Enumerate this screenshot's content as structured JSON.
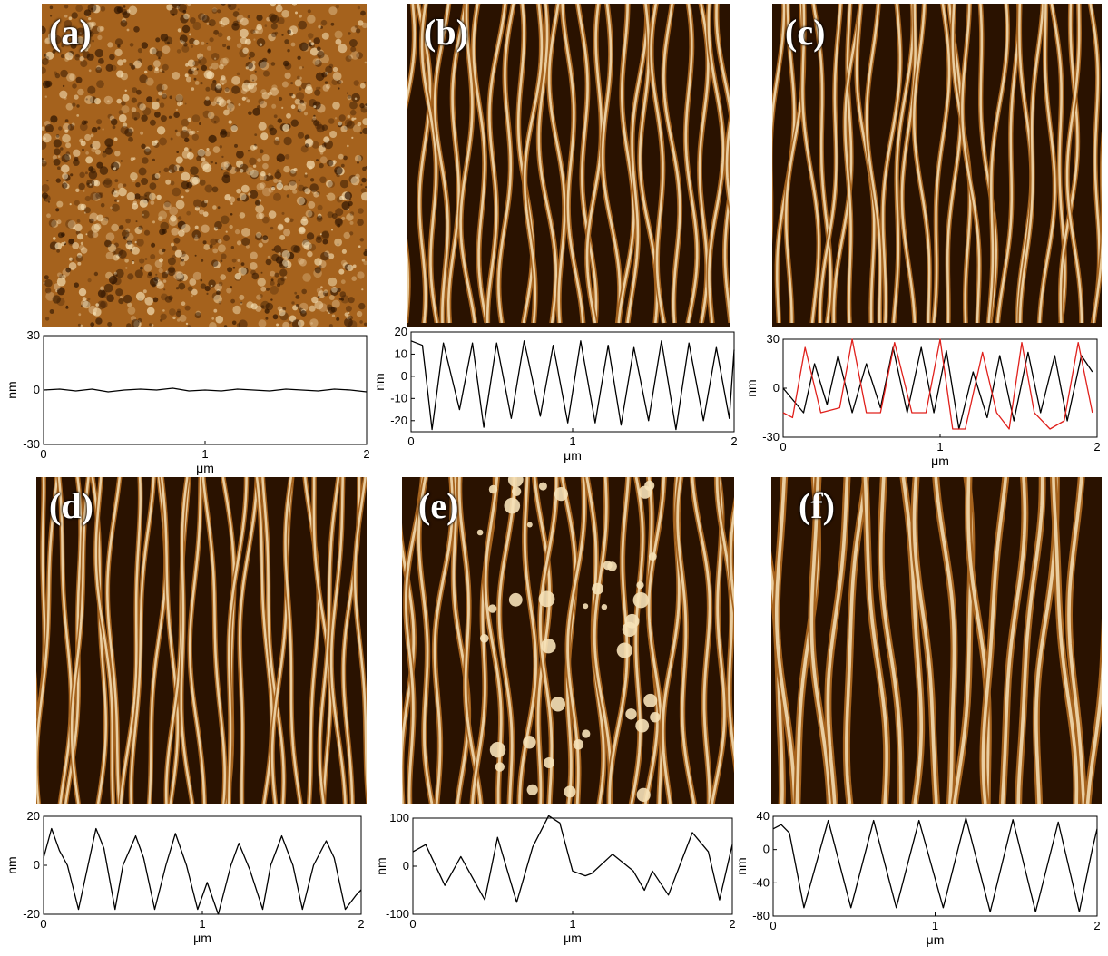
{
  "panels": [
    {
      "label": "(a)",
      "pattern": "grain"
    },
    {
      "label": "(b)",
      "pattern": "stripes-wavy"
    },
    {
      "label": "(c)",
      "pattern": "stripes-network"
    },
    {
      "label": "(d)",
      "pattern": "stripes-strained"
    },
    {
      "label": "(e)",
      "pattern": "stripes-particles"
    },
    {
      "label": "(f)",
      "pattern": "stripes-regular"
    }
  ],
  "colors": {
    "afm_dark": "#2a1200",
    "afm_mid": "#a5621d",
    "afm_light": "#f6e2b8",
    "series_black": "#000000",
    "series_red": "#e0201c"
  },
  "chart_data": [
    {
      "type": "line",
      "panel": "a",
      "xlabel": "μm",
      "ylabel": "nm",
      "xlim": [
        0,
        2
      ],
      "ylim": [
        -30,
        30
      ],
      "xticks": [
        "0",
        "1",
        "2"
      ],
      "yticks": [
        "30",
        "0",
        "-30"
      ],
      "series": [
        {
          "color": "#000000",
          "x": [
            0,
            0.1,
            0.2,
            0.3,
            0.4,
            0.5,
            0.6,
            0.7,
            0.8,
            0.9,
            1.0,
            1.1,
            1.2,
            1.3,
            1.4,
            1.5,
            1.6,
            1.7,
            1.8,
            1.9,
            2.0
          ],
          "y": [
            0,
            0.5,
            -0.5,
            0.5,
            -1,
            0,
            0.5,
            0,
            1,
            -0.5,
            0,
            -0.5,
            0.5,
            0,
            -0.5,
            0.5,
            0,
            -0.5,
            0.5,
            0,
            -1
          ]
        }
      ]
    },
    {
      "type": "line",
      "panel": "b",
      "xlabel": "μm",
      "ylabel": "nm",
      "xlim": [
        0,
        2
      ],
      "ylim": [
        -25,
        20
      ],
      "xticks": [
        "0",
        "1",
        "2"
      ],
      "yticks": [
        "20",
        "10",
        "0",
        "-10",
        "-20"
      ],
      "series": [
        {
          "color": "#000000",
          "x": [
            0,
            0.07,
            0.13,
            0.2,
            0.3,
            0.38,
            0.45,
            0.53,
            0.62,
            0.7,
            0.8,
            0.88,
            0.97,
            1.05,
            1.14,
            1.22,
            1.3,
            1.38,
            1.47,
            1.55,
            1.64,
            1.72,
            1.81,
            1.89,
            1.97,
            2.0
          ],
          "y": [
            16,
            14,
            -24,
            15,
            -15,
            15,
            -23,
            15,
            -19,
            16,
            -18,
            14,
            -21,
            16,
            -21,
            14,
            -22,
            13,
            -20,
            16,
            -24,
            15,
            -20,
            13,
            -19,
            12
          ]
        }
      ]
    },
    {
      "type": "line",
      "panel": "c",
      "xlabel": "μm",
      "ylabel": "nm",
      "xlim": [
        0,
        2
      ],
      "ylim": [
        -30,
        30
      ],
      "xticks": [
        "0",
        "1",
        "2"
      ],
      "yticks": [
        "30",
        "0",
        "-30"
      ],
      "series": [
        {
          "color": "#000000",
          "x": [
            0,
            0.13,
            0.2,
            0.28,
            0.35,
            0.44,
            0.53,
            0.62,
            0.7,
            0.79,
            0.88,
            0.96,
            1.04,
            1.12,
            1.21,
            1.3,
            1.38,
            1.47,
            1.56,
            1.64,
            1.73,
            1.81,
            1.9,
            1.97
          ],
          "y": [
            0,
            -15,
            15,
            -10,
            20,
            -15,
            15,
            -12,
            25,
            -15,
            25,
            -15,
            23,
            -25,
            10,
            -18,
            20,
            -20,
            22,
            -15,
            20,
            -20,
            20,
            10
          ]
        },
        {
          "color": "#e0201c",
          "x": [
            0,
            0.06,
            0.14,
            0.24,
            0.36,
            0.44,
            0.53,
            0.62,
            0.71,
            0.82,
            0.91,
            1.0,
            1.08,
            1.16,
            1.27,
            1.36,
            1.44,
            1.52,
            1.6,
            1.7,
            1.79,
            1.88,
            1.97
          ],
          "y": [
            -15,
            -18,
            25,
            -15,
            -12,
            30,
            -15,
            -15,
            28,
            -15,
            -15,
            30,
            -25,
            -25,
            22,
            -15,
            -25,
            28,
            -15,
            -25,
            -20,
            28,
            -15
          ]
        }
      ]
    },
    {
      "type": "line",
      "panel": "d",
      "xlabel": "μm",
      "ylabel": "nm",
      "xlim": [
        0,
        2
      ],
      "ylim": [
        -20,
        20
      ],
      "xticks": [
        "0",
        "1",
        "2"
      ],
      "yticks": [
        "20",
        "0",
        "-20"
      ],
      "series": [
        {
          "color": "#000000",
          "x": [
            0,
            0.05,
            0.1,
            0.15,
            0.22,
            0.28,
            0.33,
            0.38,
            0.45,
            0.5,
            0.58,
            0.63,
            0.7,
            0.77,
            0.83,
            0.9,
            0.97,
            1.03,
            1.1,
            1.18,
            1.23,
            1.3,
            1.38,
            1.43,
            1.5,
            1.57,
            1.63,
            1.7,
            1.78,
            1.83,
            1.9,
            1.97,
            2.0
          ],
          "y": [
            3,
            15,
            6,
            0,
            -18,
            0,
            15,
            7,
            -18,
            0,
            12,
            3,
            -18,
            0,
            13,
            0,
            -18,
            -7,
            -20,
            0,
            9,
            -2,
            -18,
            0,
            12,
            0,
            -18,
            0,
            10,
            3,
            -18,
            -12,
            -10
          ]
        }
      ]
    },
    {
      "type": "line",
      "panel": "e",
      "xlabel": "μm",
      "ylabel": "nm",
      "xlim": [
        0,
        2
      ],
      "ylim": [
        -100,
        100
      ],
      "xticks": [
        "0",
        "1",
        "2"
      ],
      "yticks": [
        "100",
        "0",
        "-100"
      ],
      "series": [
        {
          "color": "#000000",
          "x": [
            0,
            0.08,
            0.2,
            0.3,
            0.45,
            0.53,
            0.65,
            0.75,
            0.85,
            0.92,
            1.0,
            1.08,
            1.12,
            1.25,
            1.38,
            1.45,
            1.5,
            1.6,
            1.75,
            1.85,
            1.92,
            2.0
          ],
          "y": [
            30,
            45,
            -40,
            20,
            -70,
            60,
            -75,
            40,
            105,
            90,
            -10,
            -20,
            -15,
            25,
            -10,
            -50,
            -10,
            -60,
            70,
            30,
            -70,
            45
          ]
        }
      ]
    },
    {
      "type": "line",
      "panel": "f",
      "xlabel": "μm",
      "ylabel": "nm",
      "xlim": [
        0,
        2
      ],
      "ylim": [
        -80,
        40
      ],
      "xticks": [
        "0",
        "1",
        "2"
      ],
      "yticks": [
        "40",
        "0",
        "-40",
        "-80"
      ],
      "series": [
        {
          "color": "#000000",
          "x": [
            0,
            0.05,
            0.1,
            0.19,
            0.34,
            0.48,
            0.62,
            0.76,
            0.9,
            1.05,
            1.19,
            1.34,
            1.48,
            1.62,
            1.76,
            1.89,
            1.97,
            2.0
          ],
          "y": [
            25,
            30,
            20,
            -70,
            35,
            -70,
            35,
            -70,
            35,
            -70,
            38,
            -75,
            36,
            -75,
            33,
            -75,
            0,
            25
          ]
        }
      ]
    }
  ]
}
